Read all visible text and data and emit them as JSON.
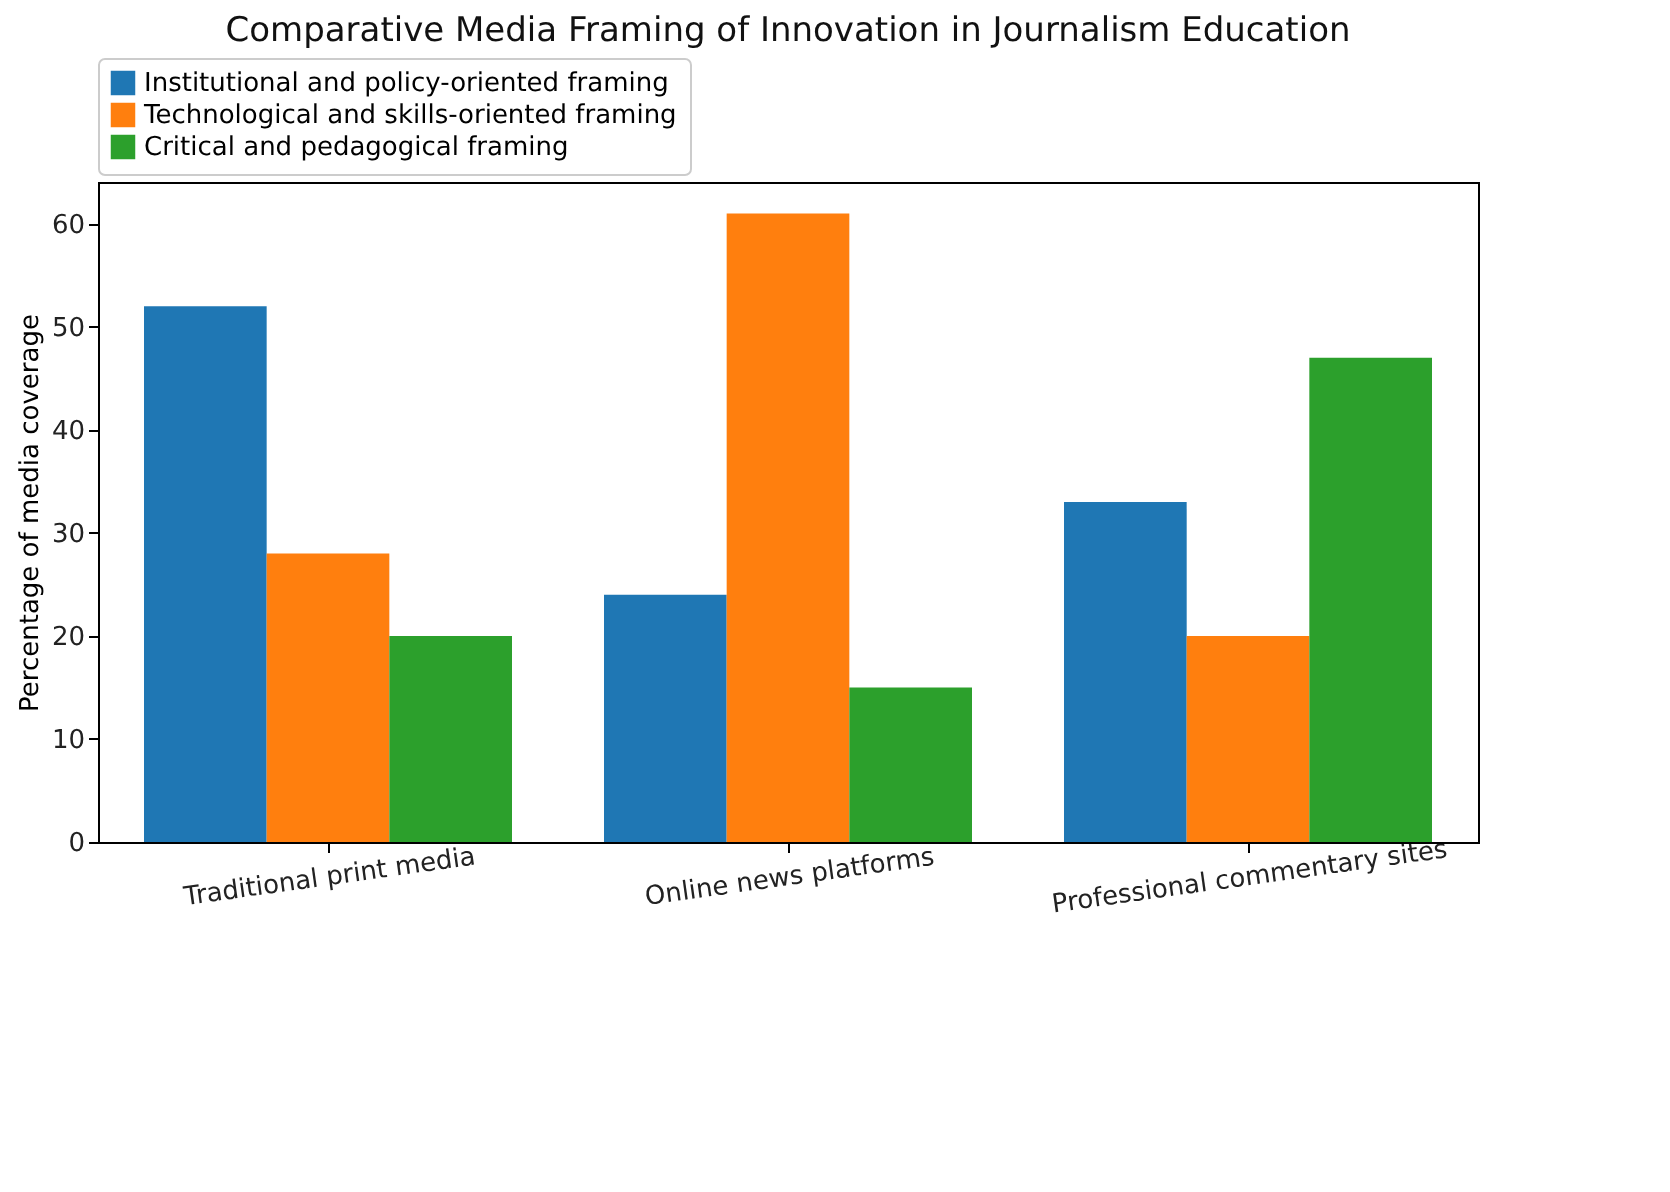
{
  "chart_data": {
    "type": "bar",
    "title": "Comparative Media Framing of Innovation in Journalism Education",
    "ylabel": "Percentage of media coverage",
    "categories": [
      "Traditional print media",
      "Online news platforms",
      "Professional commentary sites"
    ],
    "series": [
      {
        "name": "Institutional and policy-oriented framing",
        "color": "#1f77b4",
        "values": [
          52,
          24,
          33
        ]
      },
      {
        "name": "Technological and skills-oriented framing",
        "color": "#ff7f0e",
        "values": [
          28,
          61,
          20
        ]
      },
      {
        "name": "Critical and pedagogical framing",
        "color": "#2ca02c",
        "values": [
          20,
          15,
          47
        ]
      }
    ],
    "ylim": [
      0,
      64.05
    ],
    "yticks": [
      0,
      10,
      20,
      30,
      40,
      50,
      60
    ],
    "grid": false,
    "legend": "top"
  }
}
